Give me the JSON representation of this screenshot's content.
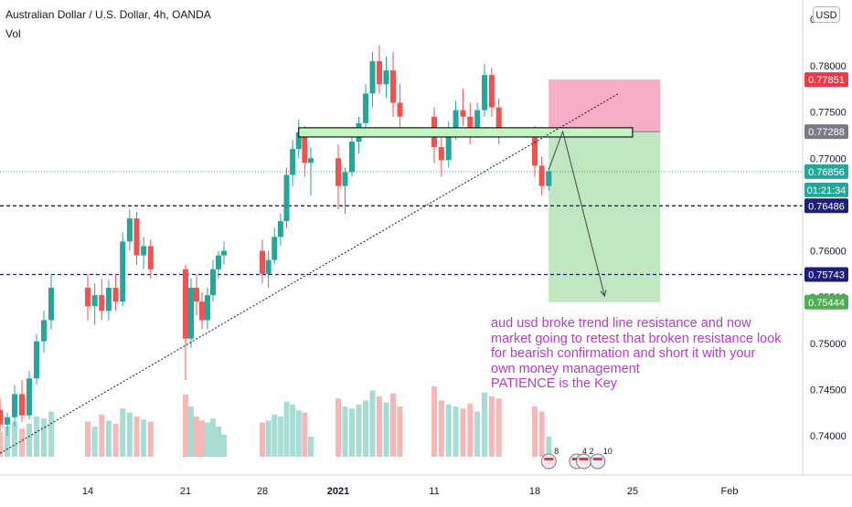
{
  "header": {
    "symbol_title": "Australian Dollar / U.S. Dollar, 4h, OANDA",
    "indicator": "Vol",
    "currency_button": "USD"
  },
  "colors": {
    "up": "#26a69a",
    "down": "#ef5350",
    "vol_up": "#a6dcd4",
    "vol_down": "#f5b8b6",
    "stop_zone": "#f4a0bd",
    "target_zone": "#b6e3b5",
    "resistance_box": "#c3f5c0",
    "annotation": "#b43cc8",
    "dashed_level": "#1e1e78"
  },
  "annotation_text": [
    "aud usd broke trend line resistance and now",
    "market going to retest that broken resistance look",
    "for bearish confirmation and short it with your",
    "own money management",
    "PATIENCE is the Key"
  ],
  "chart_data": {
    "type": "candlestick",
    "title": "Australian Dollar / U.S. Dollar, 4h, OANDA",
    "ylim": [
      0.737,
      0.783
    ],
    "y_ticks": [
      "0.78000",
      "0.77500",
      "0.77000",
      "0.76500",
      "0.76000",
      "0.75500",
      "0.75000",
      "0.74500",
      "0.74000"
    ],
    "y_tick_values": [
      0.78,
      0.775,
      0.77,
      0.765,
      0.76,
      0.755,
      0.75,
      0.745,
      0.74
    ],
    "top_partial_tick": "0",
    "x_ticks": [
      "14",
      "21",
      "28",
      "2021",
      "11",
      "18",
      "25",
      "Feb"
    ],
    "x_tick_dates": [
      "2020-12-14",
      "2020-12-21",
      "2020-12-28",
      "2021-01-04",
      "2021-01-11",
      "2021-01-18",
      "2021-01-25",
      "2021-02-01"
    ],
    "price_tags": [
      {
        "label": "0.77851",
        "value": 0.77851,
        "color": "#f23645"
      },
      {
        "label": "0.77288",
        "value": 0.77288,
        "color": "#787b86"
      },
      {
        "label": "0.76856",
        "value": 0.76856,
        "color": "#26a69a"
      },
      {
        "label": "01:21:34",
        "value": null,
        "color": "#26a69a"
      },
      {
        "label": "0.76486",
        "value": 0.76486,
        "color": "#1e1e78"
      },
      {
        "label": "0.75743",
        "value": 0.75743,
        "color": "#1e1e78"
      },
      {
        "label": "0.75444",
        "value": 0.75444,
        "color": "#4caf50"
      }
    ],
    "horizontal_levels": [
      0.76486,
      0.75743
    ],
    "current_price": 0.76856,
    "resistance_zone": {
      "start": "2020-12-31",
      "end": "2021-01-25",
      "low": 0.7723,
      "high": 0.7733
    },
    "trendline": {
      "start": {
        "date": "2020-12-08",
        "price": 0.7381
      },
      "end": {
        "date": "2021-01-24",
        "price": 0.777
      }
    },
    "short_position": {
      "start": "2021-01-19",
      "end": "2021-01-27",
      "entry": 0.77288,
      "stop": 0.77851,
      "target": 0.75444
    },
    "projection": [
      {
        "date": "2021-01-19",
        "price": 0.7688
      },
      {
        "date": "2021-01-20",
        "price": 0.7729
      },
      {
        "date": "2021-01-23",
        "price": 0.7551
      }
    ],
    "grid": false,
    "series_meta": {
      "candles": "OHLC approximated",
      "volume": "relative"
    },
    "candles": [
      [
        "2020-12-08T00",
        0.7428,
        0.744,
        0.7405,
        0.7412
      ],
      [
        "2020-12-08T12",
        0.7412,
        0.7425,
        0.74,
        0.742
      ],
      [
        "2020-12-09T00",
        0.742,
        0.7455,
        0.741,
        0.7445
      ],
      [
        "2020-12-09T12",
        0.7445,
        0.746,
        0.7415,
        0.7422
      ],
      [
        "2020-12-10T00",
        0.7422,
        0.747,
        0.7418,
        0.7462
      ],
      [
        "2020-12-10T12",
        0.7462,
        0.751,
        0.7455,
        0.7502
      ],
      [
        "2020-12-11T00",
        0.7502,
        0.7535,
        0.749,
        0.7525
      ],
      [
        "2020-12-11T12",
        0.7525,
        0.7575,
        0.7515,
        0.756
      ],
      [
        "2020-12-14T00",
        0.756,
        0.7575,
        0.7525,
        0.754
      ],
      [
        "2020-12-14T12",
        0.754,
        0.7565,
        0.752,
        0.7552
      ],
      [
        "2020-12-15T00",
        0.7552,
        0.757,
        0.7525,
        0.7535
      ],
      [
        "2020-12-15T12",
        0.7535,
        0.7568,
        0.7525,
        0.756
      ],
      [
        "2020-12-16T00",
        0.756,
        0.7575,
        0.7535,
        0.7545
      ],
      [
        "2020-12-16T12",
        0.7545,
        0.762,
        0.754,
        0.761
      ],
      [
        "2020-12-17T00",
        0.761,
        0.7645,
        0.76,
        0.7635
      ],
      [
        "2020-12-17T12",
        0.7635,
        0.7642,
        0.7585,
        0.7595
      ],
      [
        "2020-12-18T00",
        0.7595,
        0.7615,
        0.758,
        0.7605
      ],
      [
        "2020-12-18T12",
        0.7605,
        0.7612,
        0.757,
        0.758
      ],
      [
        "2020-12-21T00",
        0.758,
        0.7585,
        0.746,
        0.7505
      ],
      [
        "2020-12-21T12",
        0.7505,
        0.757,
        0.7495,
        0.756
      ],
      [
        "2020-12-22T00",
        0.756,
        0.7575,
        0.753,
        0.7545
      ],
      [
        "2020-12-22T12",
        0.7545,
        0.7555,
        0.7515,
        0.7525
      ],
      [
        "2020-12-23T00",
        0.7525,
        0.756,
        0.7515,
        0.7552
      ],
      [
        "2020-12-23T12",
        0.7552,
        0.759,
        0.7545,
        0.758
      ],
      [
        "2020-12-24T00",
        0.758,
        0.76,
        0.757,
        0.7595
      ],
      [
        "2020-12-24T12",
        0.7595,
        0.761,
        0.7585,
        0.76
      ],
      [
        "2020-12-28T00",
        0.76,
        0.7612,
        0.7565,
        0.7575
      ],
      [
        "2020-12-28T12",
        0.7575,
        0.76,
        0.756,
        0.759
      ],
      [
        "2020-12-29T00",
        0.759,
        0.7625,
        0.7585,
        0.7615
      ],
      [
        "2020-12-29T12",
        0.7615,
        0.764,
        0.7605,
        0.7632
      ],
      [
        "2020-12-30T00",
        0.7632,
        0.769,
        0.7625,
        0.7682
      ],
      [
        "2020-12-30T12",
        0.7682,
        0.772,
        0.767,
        0.771
      ],
      [
        "2020-12-31T00",
        0.771,
        0.7742,
        0.77,
        0.7728
      ],
      [
        "2020-12-31T12",
        0.7728,
        0.7735,
        0.768,
        0.7695
      ],
      [
        "2021-01-01T00",
        0.7695,
        0.7712,
        0.766,
        0.77
      ],
      [
        "2021-01-04T00",
        0.77,
        0.7715,
        0.7645,
        0.767
      ],
      [
        "2021-01-04T12",
        0.767,
        0.769,
        0.764,
        0.7685
      ],
      [
        "2021-01-05T00",
        0.7685,
        0.7725,
        0.768,
        0.7718
      ],
      [
        "2021-01-05T12",
        0.7718,
        0.7745,
        0.7705,
        0.7738
      ],
      [
        "2021-01-06T00",
        0.7738,
        0.778,
        0.7725,
        0.777
      ],
      [
        "2021-01-06T12",
        0.777,
        0.7815,
        0.7755,
        0.7805
      ],
      [
        "2021-01-07T00",
        0.7805,
        0.7822,
        0.777,
        0.778
      ],
      [
        "2021-01-07T12",
        0.778,
        0.781,
        0.7765,
        0.7795
      ],
      [
        "2021-01-08T00",
        0.7795,
        0.7815,
        0.7745,
        0.776
      ],
      [
        "2021-01-08T12",
        0.776,
        0.778,
        0.773,
        0.7745
      ],
      [
        "2021-01-11T00",
        0.7745,
        0.7755,
        0.7695,
        0.7712
      ],
      [
        "2021-01-11T12",
        0.7712,
        0.773,
        0.768,
        0.7698
      ],
      [
        "2021-01-12T00",
        0.7698,
        0.774,
        0.769,
        0.7732
      ],
      [
        "2021-01-12T12",
        0.7732,
        0.7762,
        0.772,
        0.7752
      ],
      [
        "2021-01-13T00",
        0.7752,
        0.7775,
        0.7735,
        0.7745
      ],
      [
        "2021-01-13T12",
        0.7745,
        0.776,
        0.7715,
        0.773
      ],
      [
        "2021-01-14T00",
        0.773,
        0.776,
        0.7722,
        0.7752
      ],
      [
        "2021-01-14T12",
        0.7752,
        0.7802,
        0.7745,
        0.779
      ],
      [
        "2021-01-15T00",
        0.779,
        0.7798,
        0.7745,
        0.7755
      ],
      [
        "2021-01-15T12",
        0.7755,
        0.7765,
        0.7715,
        0.7725
      ],
      [
        "2021-01-18T00",
        0.7725,
        0.7735,
        0.768,
        0.7692
      ],
      [
        "2021-01-18T12",
        0.7692,
        0.7702,
        0.766,
        0.767
      ],
      [
        "2021-01-19T00",
        0.767,
        0.769,
        0.7665,
        0.7686
      ]
    ],
    "volume": [
      0.25,
      0.3,
      0.35,
      0.28,
      0.33,
      0.4,
      0.38,
      0.45,
      0.35,
      0.3,
      0.42,
      0.36,
      0.33,
      0.48,
      0.44,
      0.4,
      0.37,
      0.35,
      0.62,
      0.5,
      0.4,
      0.36,
      0.34,
      0.38,
      0.3,
      0.22,
      0.34,
      0.36,
      0.42,
      0.4,
      0.55,
      0.52,
      0.46,
      0.44,
      0.2,
      0.58,
      0.5,
      0.48,
      0.52,
      0.56,
      0.66,
      0.6,
      0.54,
      0.63,
      0.5,
      0.7,
      0.56,
      0.52,
      0.5,
      0.48,
      0.53,
      0.45,
      0.64,
      0.6,
      0.58,
      0.5,
      0.45,
      0.2
    ]
  }
}
